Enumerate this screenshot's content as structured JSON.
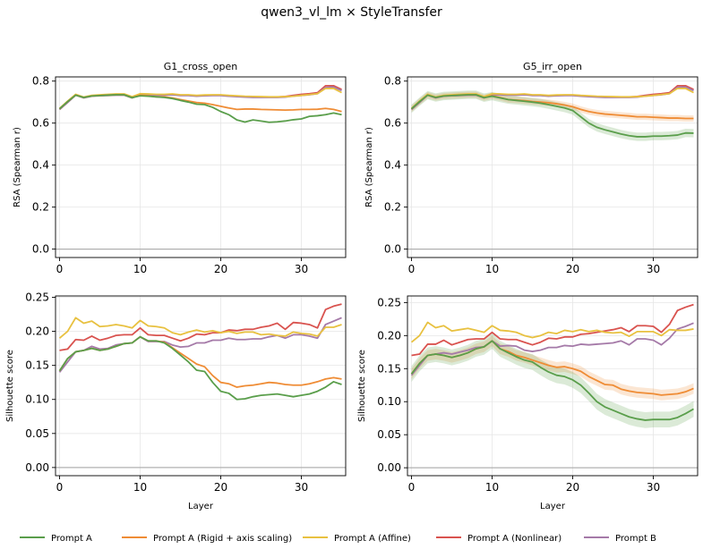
{
  "title": "qwen3_vl_lm × StyleTransfer",
  "colors": {
    "green": "#5a9e4b",
    "orange": "#ef8c35",
    "yellow": "#e8c140",
    "red": "#d9534f",
    "purple": "#a57aa8",
    "zero_line": "#b0b0b0",
    "grid": "#e6e6e6"
  },
  "legend": {
    "placement": "bottom-center",
    "entries": [
      {
        "label": "Prompt A",
        "color": "#5a9e4b"
      },
      {
        "label": "Prompt A (Rigid + axis scaling)",
        "color": "#ef8c35"
      },
      {
        "label": "Prompt A (Affine)",
        "color": "#e8c140"
      },
      {
        "label": "Prompt A (Nonlinear)",
        "color": "#d9534f"
      },
      {
        "label": "Prompt B",
        "color": "#a57aa8"
      }
    ]
  },
  "chart_data": [
    {
      "type": "line",
      "title": "G1_cross_open",
      "xlabel": "",
      "ylabel": "RSA (Spearman r)",
      "xlim": [
        -0.5,
        35.5
      ],
      "ylim": [
        -0.04,
        0.82
      ],
      "xticks": [
        0,
        10,
        20,
        30
      ],
      "yticks": [
        0.0,
        0.2,
        0.4,
        0.6,
        0.8
      ],
      "ytick_labels": [
        "0.0",
        "0.2",
        "0.4",
        "0.6",
        "0.8"
      ],
      "grid": true,
      "zero_line": true,
      "series": [
        {
          "color": "#d9534f",
          "values": [
            0.665,
            0.7,
            0.735,
            0.722,
            0.73,
            0.732,
            0.733,
            0.735,
            0.735,
            0.722,
            0.738,
            0.737,
            0.735,
            0.735,
            0.737,
            0.733,
            0.733,
            0.73,
            0.732,
            0.733,
            0.733,
            0.73,
            0.728,
            0.726,
            0.725,
            0.724,
            0.724,
            0.724,
            0.727,
            0.732,
            0.737,
            0.74,
            0.745,
            0.778,
            0.778,
            0.76
          ]
        },
        {
          "color": "#a57aa8",
          "values": [
            0.665,
            0.698,
            0.733,
            0.72,
            0.728,
            0.73,
            0.731,
            0.733,
            0.733,
            0.72,
            0.735,
            0.735,
            0.733,
            0.733,
            0.735,
            0.731,
            0.731,
            0.728,
            0.73,
            0.731,
            0.731,
            0.728,
            0.726,
            0.724,
            0.722,
            0.722,
            0.722,
            0.722,
            0.724,
            0.729,
            0.732,
            0.735,
            0.74,
            0.77,
            0.772,
            0.755
          ]
        },
        {
          "color": "#e8c140",
          "values": [
            0.67,
            0.705,
            0.737,
            0.724,
            0.732,
            0.735,
            0.737,
            0.739,
            0.739,
            0.726,
            0.74,
            0.739,
            0.737,
            0.737,
            0.739,
            0.735,
            0.735,
            0.732,
            0.734,
            0.735,
            0.735,
            0.732,
            0.73,
            0.728,
            0.727,
            0.726,
            0.725,
            0.725,
            0.726,
            0.728,
            0.732,
            0.736,
            0.74,
            0.765,
            0.765,
            0.745
          ]
        },
        {
          "color": "#ef8c35",
          "values": [
            0.668,
            0.702,
            0.733,
            0.722,
            0.729,
            0.731,
            0.733,
            0.735,
            0.735,
            0.721,
            0.733,
            0.73,
            0.725,
            0.725,
            0.72,
            0.712,
            0.705,
            0.698,
            0.695,
            0.688,
            0.68,
            0.672,
            0.665,
            0.667,
            0.667,
            0.665,
            0.664,
            0.663,
            0.662,
            0.663,
            0.665,
            0.665,
            0.666,
            0.67,
            0.665,
            0.655
          ]
        },
        {
          "color": "#5a9e4b",
          "values": [
            0.668,
            0.702,
            0.733,
            0.722,
            0.729,
            0.731,
            0.733,
            0.735,
            0.735,
            0.721,
            0.73,
            0.728,
            0.725,
            0.722,
            0.717,
            0.708,
            0.7,
            0.69,
            0.688,
            0.675,
            0.655,
            0.64,
            0.615,
            0.605,
            0.615,
            0.61,
            0.604,
            0.606,
            0.61,
            0.616,
            0.62,
            0.632,
            0.635,
            0.64,
            0.648,
            0.64
          ]
        }
      ]
    },
    {
      "type": "line",
      "title": "G5_irr_open",
      "xlabel": "",
      "ylabel": "RSA (Spearman r)",
      "xlim": [
        -0.5,
        35.5
      ],
      "ylim": [
        -0.04,
        0.82
      ],
      "xticks": [
        0,
        10,
        20,
        30
      ],
      "yticks": [
        0.0,
        0.2,
        0.4,
        0.6,
        0.8
      ],
      "ytick_labels": [
        "0.0",
        "0.2",
        "0.4",
        "0.6",
        "0.8"
      ],
      "grid": true,
      "zero_line": true,
      "series": [
        {
          "color": "#d9534f",
          "values": [
            0.665,
            0.7,
            0.735,
            0.722,
            0.73,
            0.732,
            0.733,
            0.735,
            0.735,
            0.722,
            0.738,
            0.737,
            0.735,
            0.735,
            0.737,
            0.733,
            0.733,
            0.73,
            0.732,
            0.733,
            0.733,
            0.73,
            0.728,
            0.726,
            0.725,
            0.724,
            0.724,
            0.724,
            0.727,
            0.732,
            0.737,
            0.74,
            0.745,
            0.778,
            0.778,
            0.76
          ]
        },
        {
          "color": "#a57aa8",
          "values": [
            0.665,
            0.698,
            0.733,
            0.72,
            0.728,
            0.73,
            0.731,
            0.733,
            0.733,
            0.72,
            0.735,
            0.735,
            0.733,
            0.733,
            0.735,
            0.731,
            0.731,
            0.728,
            0.73,
            0.731,
            0.731,
            0.728,
            0.726,
            0.724,
            0.722,
            0.722,
            0.722,
            0.722,
            0.724,
            0.729,
            0.732,
            0.735,
            0.74,
            0.77,
            0.772,
            0.755
          ]
        },
        {
          "color": "#e8c140",
          "values": [
            0.67,
            0.705,
            0.737,
            0.724,
            0.732,
            0.735,
            0.737,
            0.739,
            0.739,
            0.726,
            0.74,
            0.739,
            0.737,
            0.737,
            0.739,
            0.735,
            0.735,
            0.732,
            0.734,
            0.735,
            0.735,
            0.732,
            0.73,
            0.728,
            0.727,
            0.726,
            0.725,
            0.725,
            0.726,
            0.728,
            0.732,
            0.736,
            0.74,
            0.765,
            0.765,
            0.745
          ]
        },
        {
          "color": "#ef8c35",
          "band": 0.015,
          "values": [
            0.668,
            0.702,
            0.733,
            0.722,
            0.729,
            0.731,
            0.733,
            0.735,
            0.735,
            0.721,
            0.73,
            0.722,
            0.712,
            0.71,
            0.707,
            0.703,
            0.7,
            0.697,
            0.692,
            0.686,
            0.678,
            0.665,
            0.655,
            0.648,
            0.643,
            0.64,
            0.637,
            0.634,
            0.63,
            0.63,
            0.628,
            0.626,
            0.624,
            0.624,
            0.622,
            0.622
          ]
        },
        {
          "color": "#5a9e4b",
          "band": 0.02,
          "values": [
            0.668,
            0.702,
            0.733,
            0.722,
            0.729,
            0.731,
            0.733,
            0.735,
            0.735,
            0.721,
            0.728,
            0.72,
            0.712,
            0.708,
            0.704,
            0.7,
            0.695,
            0.688,
            0.68,
            0.672,
            0.66,
            0.63,
            0.6,
            0.58,
            0.568,
            0.558,
            0.548,
            0.54,
            0.535,
            0.535,
            0.538,
            0.538,
            0.54,
            0.543,
            0.553,
            0.552
          ]
        }
      ]
    },
    {
      "type": "line",
      "title": "",
      "xlabel": "Layer",
      "ylabel": "Silhouette score",
      "xlim": [
        -0.5,
        35.5
      ],
      "ylim": [
        -0.012,
        0.252
      ],
      "xticks": [
        0,
        10,
        20,
        30
      ],
      "yticks": [
        0.0,
        0.05,
        0.1,
        0.15,
        0.2,
        0.25
      ],
      "ytick_labels": [
        "0.00",
        "0.05",
        "0.10",
        "0.15",
        "0.20",
        "0.25"
      ],
      "grid": true,
      "zero_line": true,
      "series": [
        {
          "color": "#d9534f",
          "values": [
            0.172,
            0.174,
            0.188,
            0.187,
            0.193,
            0.187,
            0.19,
            0.194,
            0.195,
            0.195,
            0.205,
            0.195,
            0.194,
            0.194,
            0.19,
            0.186,
            0.19,
            0.196,
            0.195,
            0.198,
            0.198,
            0.202,
            0.201,
            0.203,
            0.203,
            0.206,
            0.208,
            0.212,
            0.203,
            0.213,
            0.212,
            0.21,
            0.205,
            0.232,
            0.237,
            0.24
          ]
        },
        {
          "color": "#a57aa8",
          "values": [
            0.14,
            0.155,
            0.17,
            0.172,
            0.178,
            0.174,
            0.175,
            0.18,
            0.182,
            0.183,
            0.192,
            0.185,
            0.185,
            0.185,
            0.18,
            0.177,
            0.178,
            0.183,
            0.183,
            0.187,
            0.187,
            0.19,
            0.188,
            0.188,
            0.189,
            0.189,
            0.192,
            0.194,
            0.19,
            0.195,
            0.195,
            0.193,
            0.19,
            0.21,
            0.215,
            0.22
          ]
        },
        {
          "color": "#e8c140",
          "values": [
            0.19,
            0.2,
            0.22,
            0.212,
            0.215,
            0.207,
            0.208,
            0.21,
            0.208,
            0.205,
            0.216,
            0.208,
            0.207,
            0.205,
            0.198,
            0.195,
            0.199,
            0.202,
            0.199,
            0.201,
            0.198,
            0.2,
            0.197,
            0.199,
            0.199,
            0.195,
            0.196,
            0.194,
            0.193,
            0.199,
            0.197,
            0.196,
            0.193,
            0.206,
            0.206,
            0.21
          ]
        },
        {
          "color": "#ef8c35",
          "values": [
            0.142,
            0.16,
            0.17,
            0.172,
            0.175,
            0.172,
            0.174,
            0.178,
            0.182,
            0.183,
            0.192,
            0.186,
            0.186,
            0.184,
            0.176,
            0.168,
            0.16,
            0.152,
            0.148,
            0.135,
            0.125,
            0.123,
            0.118,
            0.12,
            0.121,
            0.123,
            0.125,
            0.124,
            0.122,
            0.121,
            0.121,
            0.123,
            0.126,
            0.13,
            0.132,
            0.13
          ]
        },
        {
          "color": "#5a9e4b",
          "values": [
            0.142,
            0.16,
            0.17,
            0.172,
            0.175,
            0.172,
            0.174,
            0.178,
            0.182,
            0.183,
            0.192,
            0.186,
            0.186,
            0.183,
            0.175,
            0.165,
            0.155,
            0.143,
            0.141,
            0.125,
            0.112,
            0.109,
            0.1,
            0.101,
            0.104,
            0.106,
            0.107,
            0.108,
            0.106,
            0.104,
            0.106,
            0.108,
            0.112,
            0.118,
            0.126,
            0.122
          ]
        }
      ]
    },
    {
      "type": "line",
      "title": "",
      "xlabel": "Layer",
      "ylabel": "Silhouette score",
      "xlim": [
        -0.5,
        35.5
      ],
      "ylim": [
        -0.012,
        0.26
      ],
      "xticks": [
        0,
        10,
        20,
        30
      ],
      "yticks": [
        0.0,
        0.05,
        0.1,
        0.15,
        0.2,
        0.25
      ],
      "ytick_labels": [
        "0.00",
        "0.05",
        "0.10",
        "0.15",
        "0.20",
        "0.25"
      ],
      "grid": true,
      "zero_line": true,
      "series": [
        {
          "color": "#d9534f",
          "values": [
            0.17,
            0.172,
            0.187,
            0.187,
            0.193,
            0.186,
            0.19,
            0.194,
            0.195,
            0.195,
            0.205,
            0.195,
            0.194,
            0.194,
            0.19,
            0.186,
            0.19,
            0.196,
            0.195,
            0.198,
            0.198,
            0.202,
            0.203,
            0.205,
            0.207,
            0.209,
            0.212,
            0.206,
            0.215,
            0.215,
            0.214,
            0.205,
            0.217,
            0.238,
            0.243,
            0.247
          ]
        },
        {
          "color": "#a57aa8",
          "values": [
            0.14,
            0.155,
            0.17,
            0.172,
            0.174,
            0.172,
            0.175,
            0.178,
            0.182,
            0.183,
            0.192,
            0.184,
            0.185,
            0.184,
            0.178,
            0.176,
            0.178,
            0.182,
            0.182,
            0.185,
            0.184,
            0.187,
            0.186,
            0.187,
            0.188,
            0.189,
            0.192,
            0.186,
            0.195,
            0.195,
            0.193,
            0.186,
            0.196,
            0.21,
            0.214,
            0.219
          ]
        },
        {
          "color": "#e8c140",
          "values": [
            0.19,
            0.2,
            0.22,
            0.212,
            0.215,
            0.207,
            0.209,
            0.211,
            0.208,
            0.205,
            0.215,
            0.208,
            0.207,
            0.205,
            0.2,
            0.197,
            0.2,
            0.205,
            0.203,
            0.208,
            0.206,
            0.209,
            0.206,
            0.208,
            0.205,
            0.204,
            0.205,
            0.199,
            0.206,
            0.206,
            0.206,
            0.2,
            0.209,
            0.208,
            0.208,
            0.21
          ]
        },
        {
          "color": "#ef8c35",
          "band": 0.008,
          "values": [
            0.142,
            0.158,
            0.17,
            0.172,
            0.17,
            0.167,
            0.17,
            0.174,
            0.18,
            0.183,
            0.192,
            0.18,
            0.176,
            0.17,
            0.167,
            0.163,
            0.159,
            0.155,
            0.152,
            0.153,
            0.15,
            0.146,
            0.138,
            0.132,
            0.126,
            0.125,
            0.119,
            0.116,
            0.114,
            0.113,
            0.112,
            0.11,
            0.111,
            0.112,
            0.115,
            0.12
          ]
        },
        {
          "color": "#5a9e4b",
          "band": 0.012,
          "values": [
            0.142,
            0.158,
            0.17,
            0.172,
            0.17,
            0.167,
            0.17,
            0.174,
            0.18,
            0.183,
            0.192,
            0.18,
            0.174,
            0.168,
            0.163,
            0.16,
            0.152,
            0.145,
            0.14,
            0.138,
            0.133,
            0.125,
            0.113,
            0.1,
            0.092,
            0.087,
            0.082,
            0.077,
            0.074,
            0.072,
            0.073,
            0.073,
            0.073,
            0.076,
            0.082,
            0.089
          ]
        }
      ]
    }
  ]
}
